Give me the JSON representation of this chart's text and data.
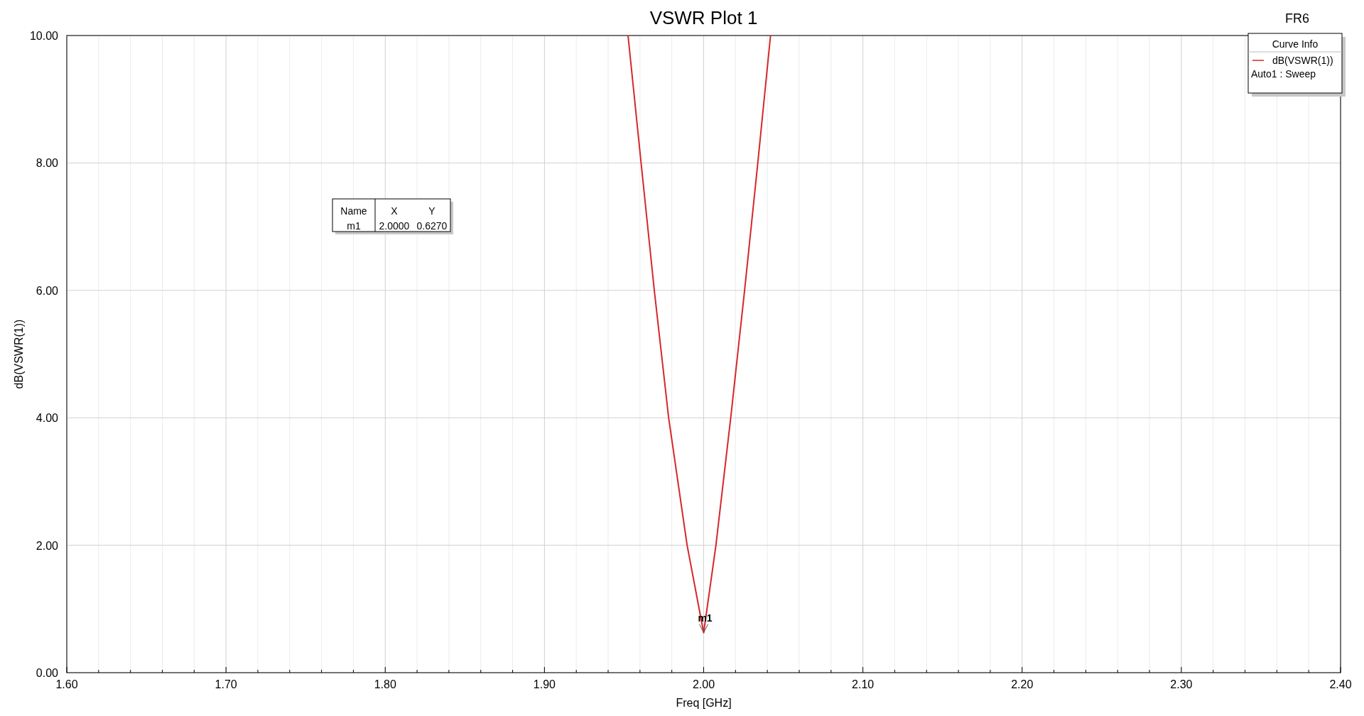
{
  "chart_data": {
    "type": "line",
    "title": "VSWR Plot 1",
    "xlabel": "Freq [GHz]",
    "ylabel": "dB(VSWR(1))",
    "legend_title": "Curve Info",
    "legend": "top right",
    "grid": true,
    "line_style": "solid",
    "marker": "none",
    "xlim": [
      1.6,
      2.4
    ],
    "xticks": [
      {
        "value": 1.6,
        "label": "1.60"
      },
      {
        "value": 1.62,
        "label": null
      },
      {
        "value": 1.64,
        "label": null
      },
      {
        "value": 1.66,
        "label": null
      },
      {
        "value": 1.68,
        "label": null
      },
      {
        "value": 1.7,
        "label": "1.70"
      },
      {
        "value": 1.72,
        "label": null
      },
      {
        "value": 1.74,
        "label": null
      },
      {
        "value": 1.76,
        "label": null
      },
      {
        "value": 1.78,
        "label": null
      },
      {
        "value": 1.8,
        "label": "1.80"
      },
      {
        "value": 1.82,
        "label": null
      },
      {
        "value": 1.84,
        "label": null
      },
      {
        "value": 1.86,
        "label": null
      },
      {
        "value": 1.88,
        "label": null
      },
      {
        "value": 1.9,
        "label": "1.90"
      },
      {
        "value": 1.92,
        "label": null
      },
      {
        "value": 1.94,
        "label": null
      },
      {
        "value": 1.96,
        "label": null
      },
      {
        "value": 1.98,
        "label": null
      },
      {
        "value": 2.0,
        "label": "2.00"
      },
      {
        "value": 2.02,
        "label": null
      },
      {
        "value": 2.04,
        "label": null
      },
      {
        "value": 2.06,
        "label": null
      },
      {
        "value": 2.08,
        "label": null
      },
      {
        "value": 2.1,
        "label": "2.10"
      },
      {
        "value": 2.12,
        "label": null
      },
      {
        "value": 2.14,
        "label": null
      },
      {
        "value": 2.16,
        "label": null
      },
      {
        "value": 2.18,
        "label": null
      },
      {
        "value": 2.2,
        "label": "2.20"
      },
      {
        "value": 2.22,
        "label": null
      },
      {
        "value": 2.24,
        "label": null
      },
      {
        "value": 2.26,
        "label": null
      },
      {
        "value": 2.28,
        "label": null
      },
      {
        "value": 2.3,
        "label": "2.30"
      },
      {
        "value": 2.32,
        "label": null
      },
      {
        "value": 2.34,
        "label": null
      },
      {
        "value": 2.36,
        "label": null
      },
      {
        "value": 2.38,
        "label": null
      },
      {
        "value": 2.4,
        "label": "2.40"
      }
    ],
    "ylim": [
      0,
      10
    ],
    "yticks": [
      {
        "value": 0,
        "label": "0.00"
      },
      {
        "value": 2,
        "label": "2.00"
      },
      {
        "value": 4,
        "label": "4.00"
      },
      {
        "value": 6,
        "label": "6.00"
      },
      {
        "value": 8,
        "label": "8.00"
      },
      {
        "value": 10,
        "label": "10.00"
      }
    ],
    "series": [
      {
        "name": "dB(VSWR(1))",
        "color": "#d62728",
        "x": [
          1.9525,
          1.9607,
          1.969,
          1.978,
          1.9896,
          2.0,
          2.0077,
          2.017,
          2.0257,
          2.034,
          2.042
        ],
        "values": [
          10,
          8,
          6,
          4,
          2,
          0.627,
          2,
          4,
          6,
          8,
          10
        ]
      }
    ],
    "annotations": [
      {
        "text": "m1",
        "x": 2.0,
        "y": 0.627
      },
      "FR6",
      "Auto1 : Sweep",
      "Name",
      "X",
      "Y",
      "m1",
      "2.0000",
      "0.6270"
    ]
  }
}
